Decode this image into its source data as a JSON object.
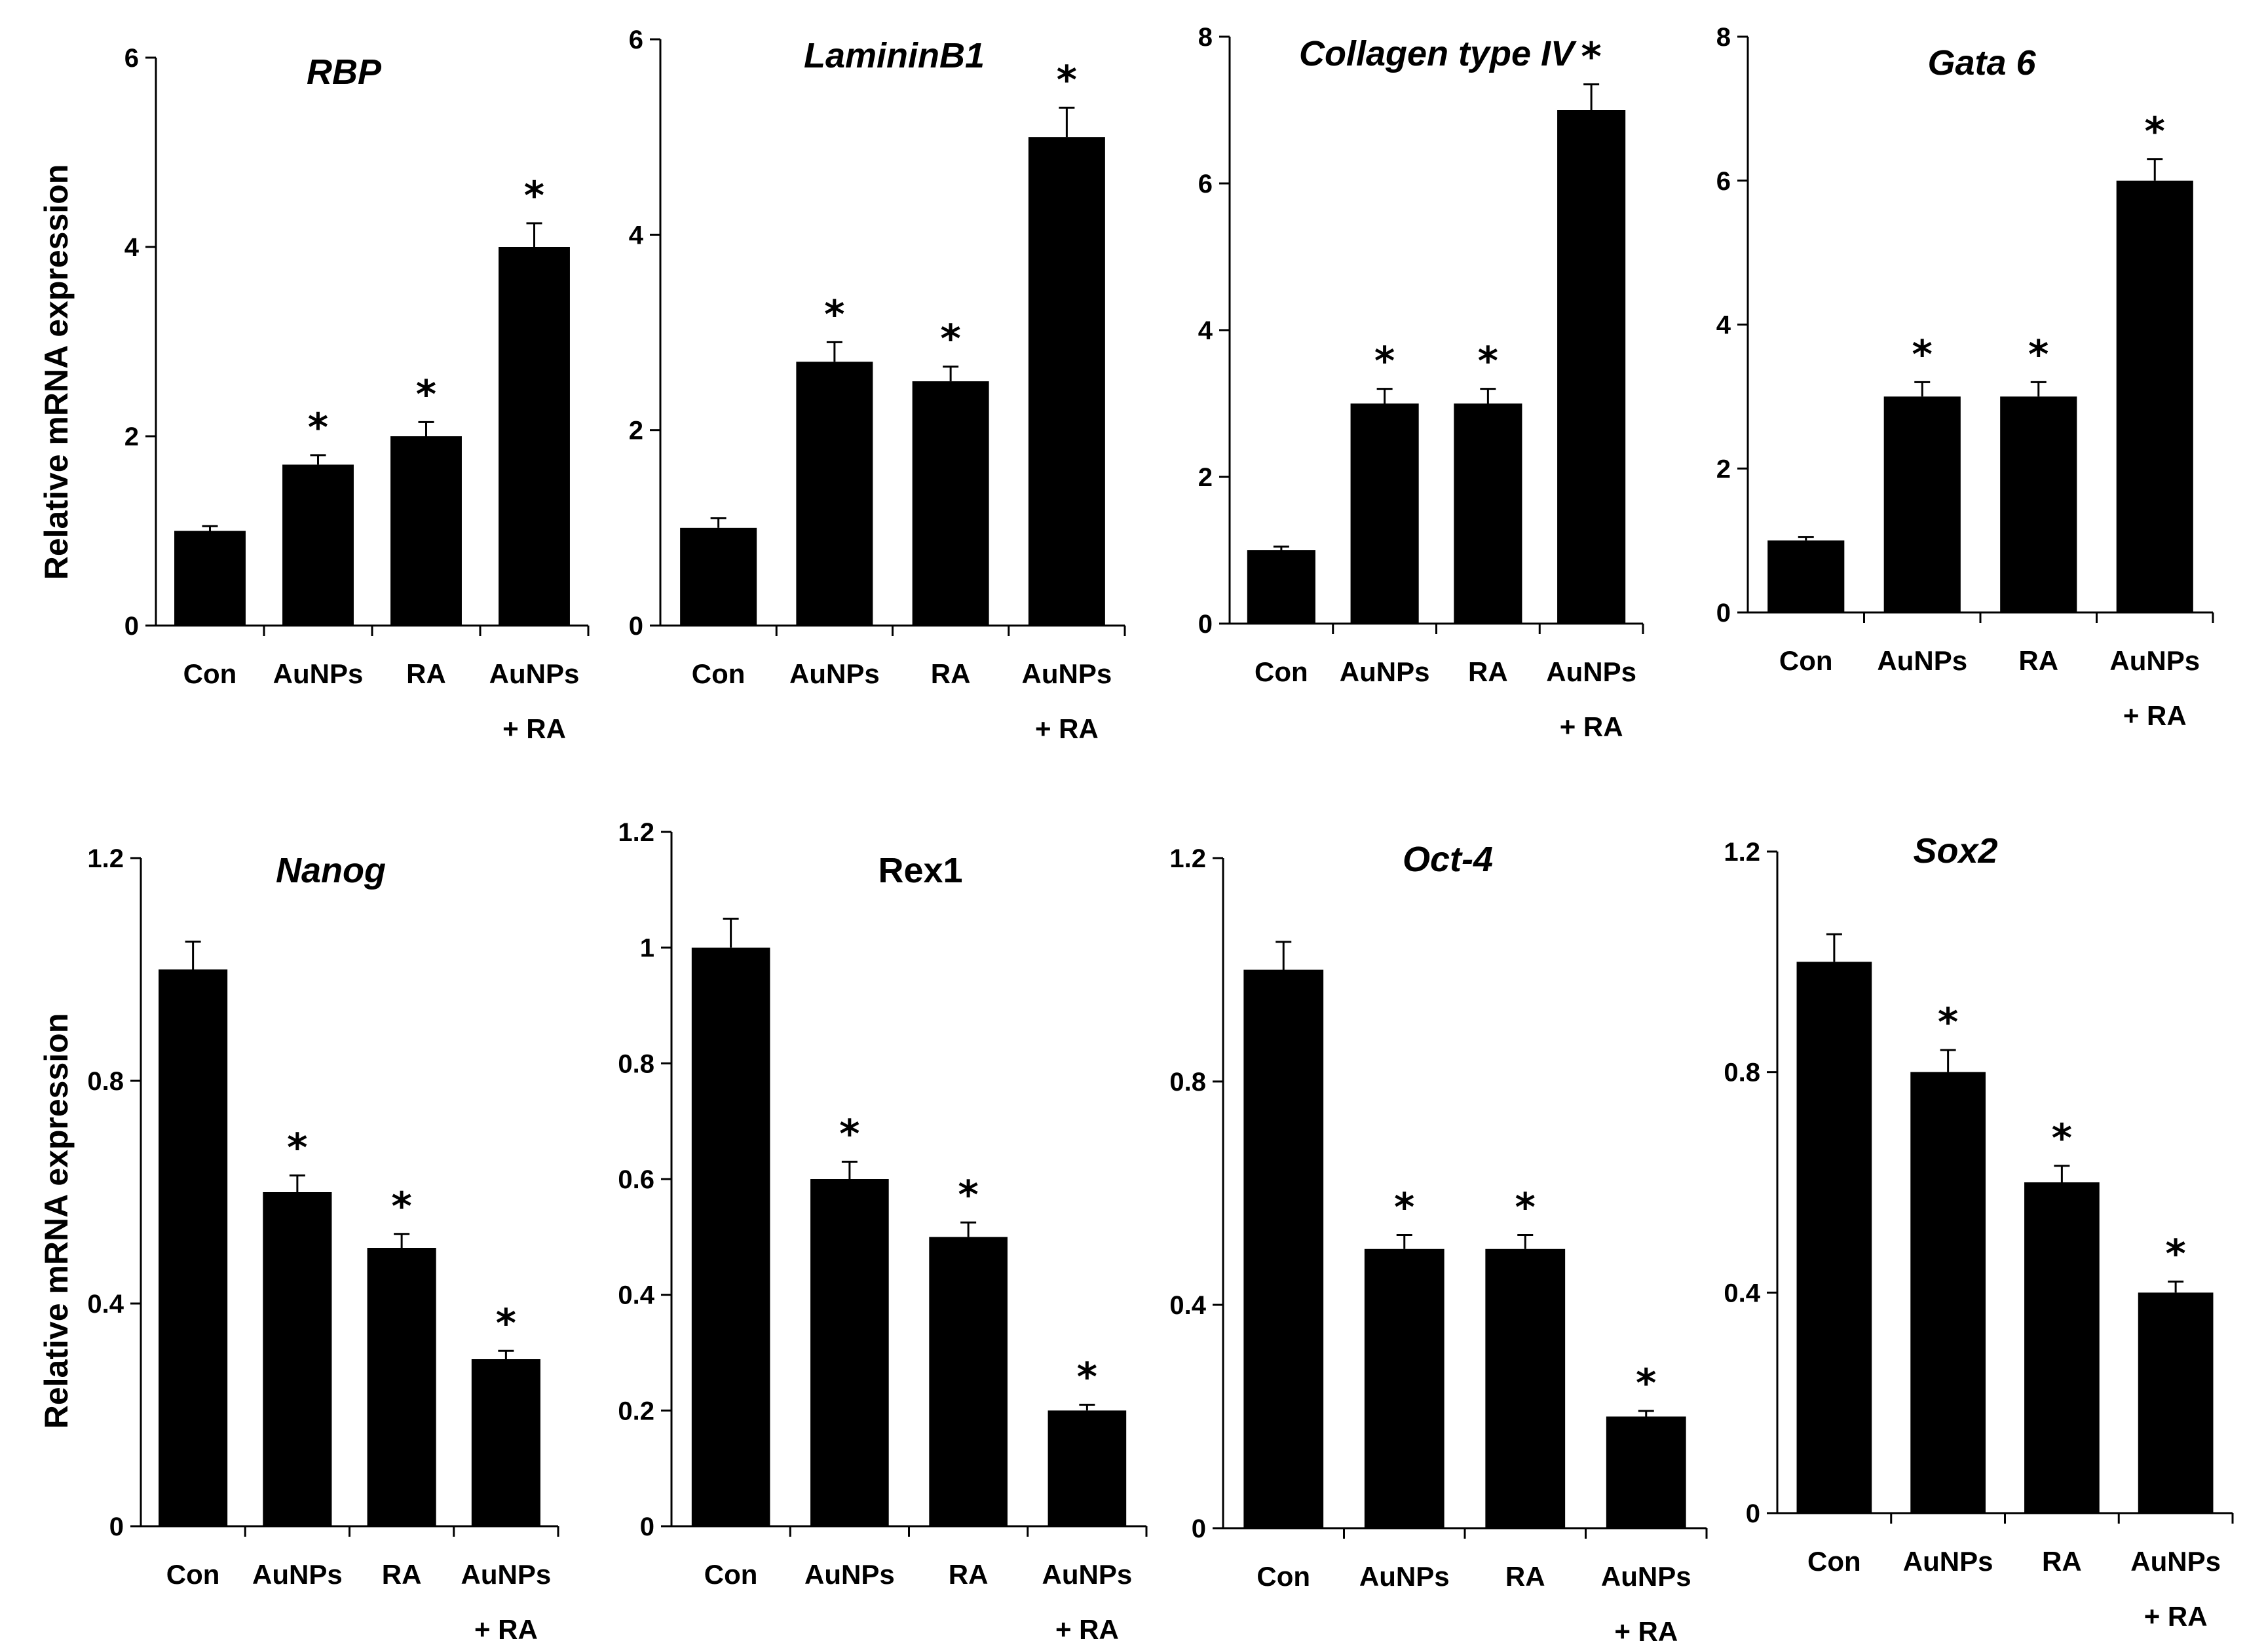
{
  "figure": {
    "ylabel": "Relative mRNA expression",
    "categories": [
      [
        "Con"
      ],
      [
        "AuNPs"
      ],
      [
        "RA"
      ],
      [
        "AuNPs",
        "+ RA"
      ]
    ],
    "significance_marker": "*",
    "bar_color": "#000000"
  },
  "chart_data": [
    {
      "type": "bar",
      "title": "RBP",
      "title_italic": true,
      "ylim": [
        0,
        6
      ],
      "yticks": [
        "0",
        "2",
        "4",
        "6"
      ],
      "values": [
        1.0,
        1.7,
        2.0,
        4.0
      ],
      "errors": [
        0.05,
        0.1,
        0.15,
        0.25
      ],
      "significant": [
        false,
        true,
        true,
        true
      ]
    },
    {
      "type": "bar",
      "title": "LamininB1",
      "title_italic": true,
      "ylim": [
        0,
        6
      ],
      "yticks": [
        "0",
        "2",
        "4",
        "6"
      ],
      "values": [
        1.0,
        2.7,
        2.5,
        5.0
      ],
      "errors": [
        0.1,
        0.2,
        0.15,
        0.3
      ],
      "significant": [
        false,
        true,
        true,
        true
      ]
    },
    {
      "type": "bar",
      "title": "Collagen type IV",
      "title_italic": true,
      "ylim": [
        0,
        8
      ],
      "yticks": [
        "0",
        "2",
        "4",
        "6",
        "8"
      ],
      "values": [
        1.0,
        3.0,
        3.0,
        7.0
      ],
      "errors": [
        0.05,
        0.2,
        0.2,
        0.35
      ],
      "significant": [
        false,
        true,
        true,
        true
      ]
    },
    {
      "type": "bar",
      "title": "Gata 6",
      "title_italic": true,
      "ylim": [
        0,
        8
      ],
      "yticks": [
        "0",
        "2",
        "4",
        "6",
        "8"
      ],
      "values": [
        1.0,
        3.0,
        3.0,
        6.0
      ],
      "errors": [
        0.05,
        0.2,
        0.2,
        0.3
      ],
      "significant": [
        false,
        true,
        true,
        true
      ]
    },
    {
      "type": "bar",
      "title": "Nanog",
      "title_italic": true,
      "ylim": [
        0,
        1.2
      ],
      "yticks": [
        "0",
        "0.4",
        "0.8",
        "1.2"
      ],
      "values": [
        1.0,
        0.6,
        0.5,
        0.3
      ],
      "errors": [
        0.05,
        0.03,
        0.025,
        0.015
      ],
      "significant": [
        false,
        true,
        true,
        true
      ]
    },
    {
      "type": "bar",
      "title": "Rex1",
      "title_italic": false,
      "ylim": [
        0,
        1.2
      ],
      "yticks": [
        "0",
        "0.2",
        "0.4",
        "0.6",
        "0.8",
        "1",
        "1.2"
      ],
      "values": [
        1.0,
        0.6,
        0.5,
        0.2
      ],
      "errors": [
        0.05,
        0.03,
        0.025,
        0.01
      ],
      "significant": [
        false,
        true,
        true,
        true
      ]
    },
    {
      "type": "bar",
      "title": "Oct-4",
      "title_italic": true,
      "ylim": [
        0,
        1.2
      ],
      "yticks": [
        "0",
        "0.4",
        "0.8",
        "1.2"
      ],
      "values": [
        1.0,
        0.5,
        0.5,
        0.2
      ],
      "errors": [
        0.05,
        0.025,
        0.025,
        0.01
      ],
      "significant": [
        false,
        true,
        true,
        true
      ]
    },
    {
      "type": "bar",
      "title": "Sox2",
      "title_italic": true,
      "ylim": [
        0,
        1.2
      ],
      "yticks": [
        "0",
        "0.4",
        "0.8",
        "1.2"
      ],
      "values": [
        1.0,
        0.8,
        0.6,
        0.4
      ],
      "errors": [
        0.05,
        0.04,
        0.03,
        0.02
      ],
      "significant": [
        false,
        true,
        true,
        true
      ]
    }
  ]
}
